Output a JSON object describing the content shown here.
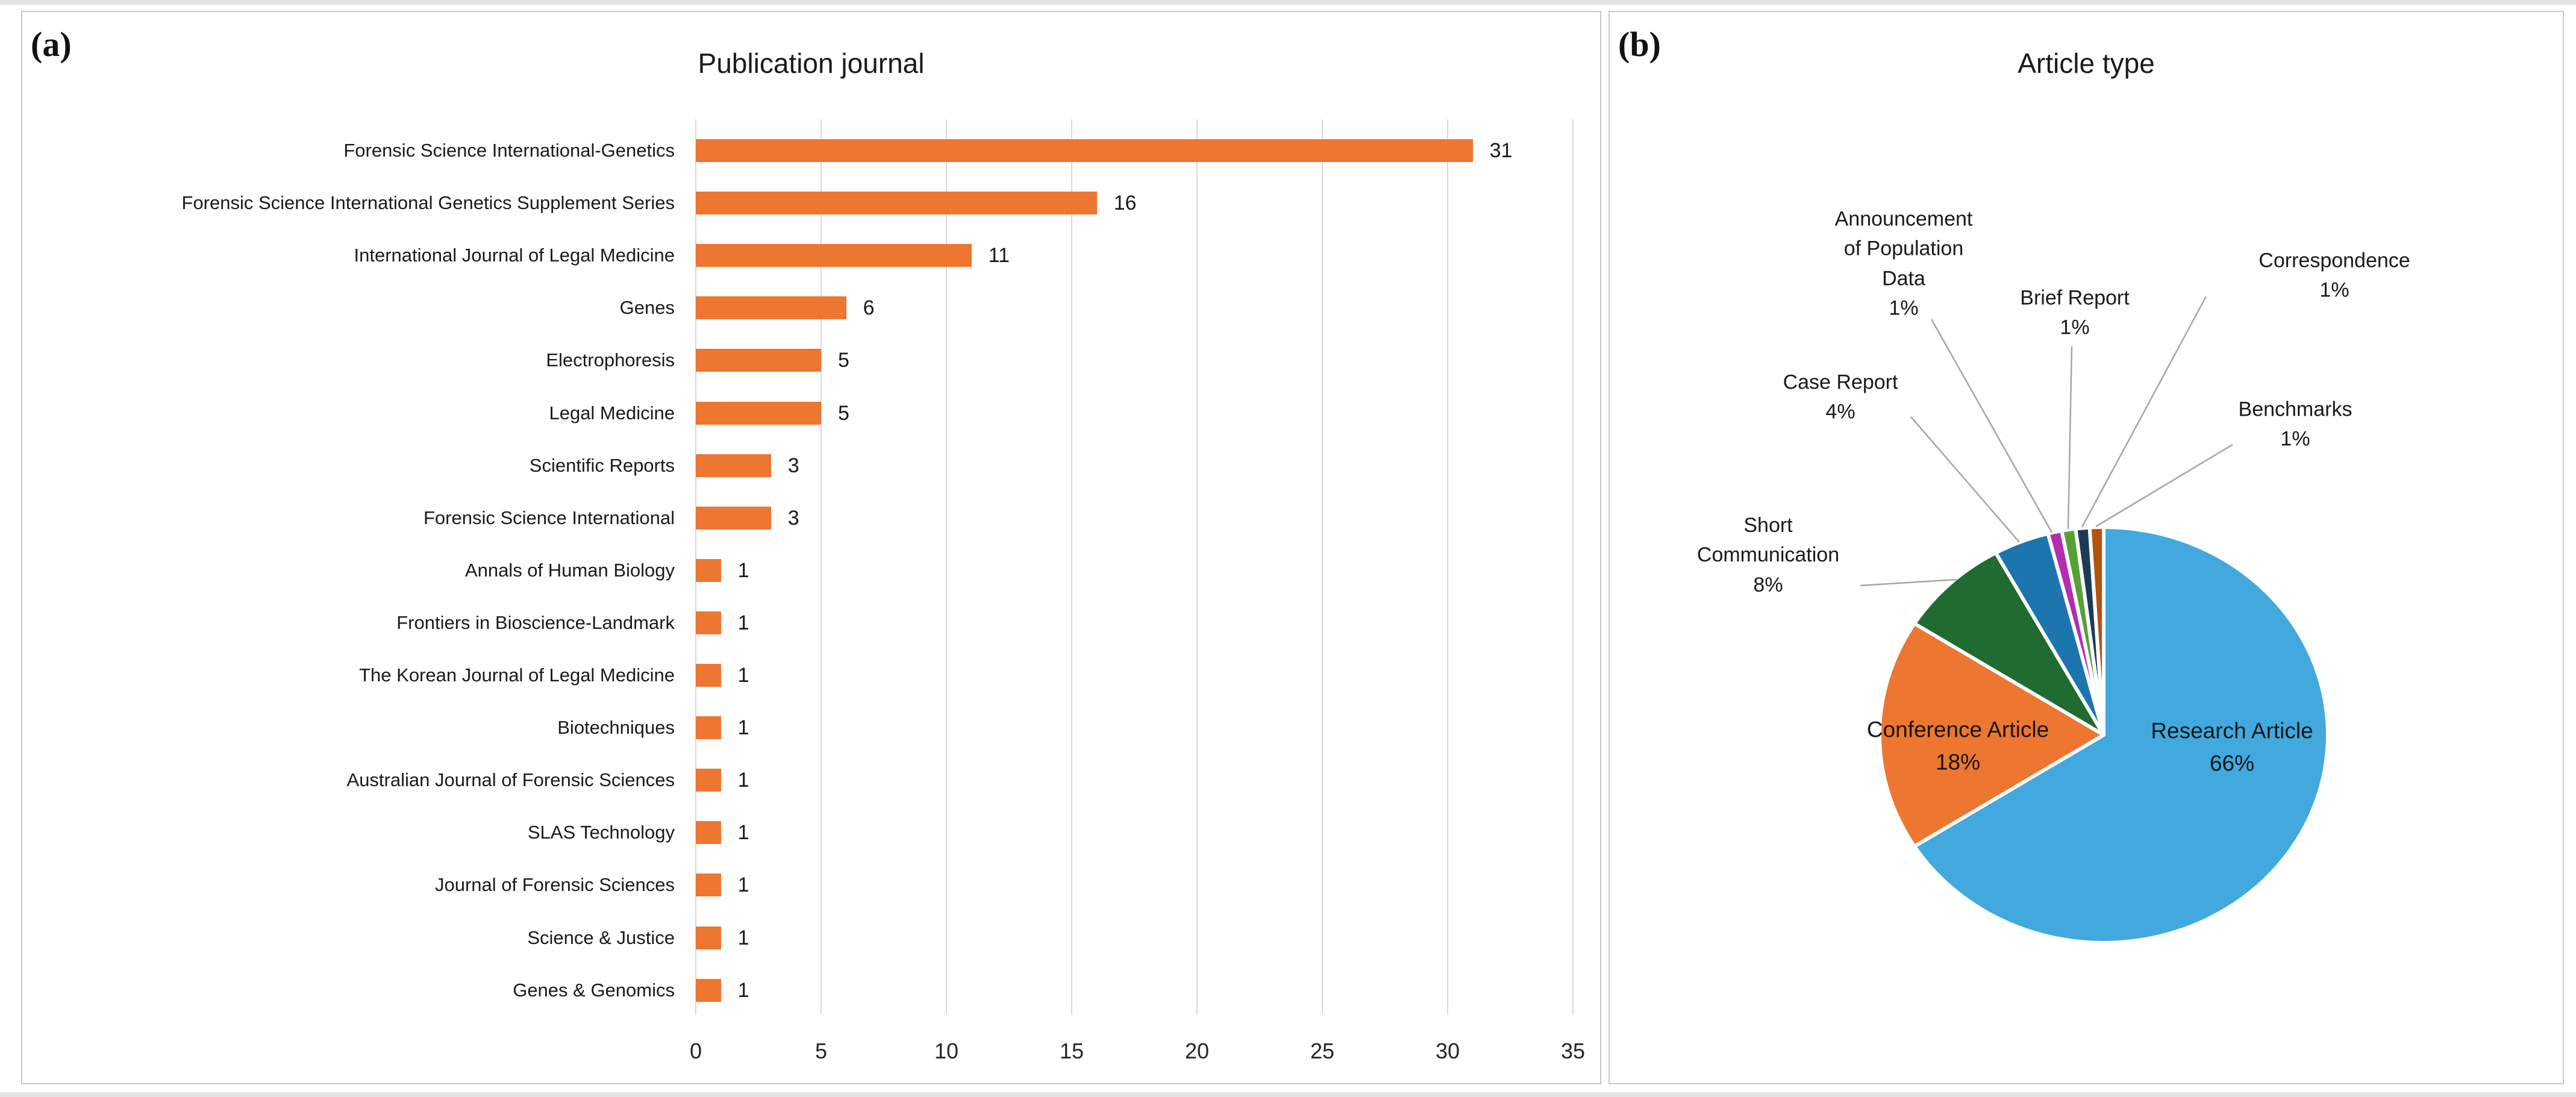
{
  "panels": {
    "a": {
      "letter": "(a)"
    },
    "b": {
      "letter": "(b)"
    }
  },
  "chart_data": [
    {
      "type": "bar",
      "title": "Publication journal",
      "orientation": "horizontal",
      "categories": [
        "Forensic Science International-Genetics",
        "Forensic Science International Genetics Supplement Series",
        "International Journal of Legal Medicine",
        "Genes",
        "Electrophoresis",
        "Legal Medicine",
        "Scientific Reports",
        "Forensic Science International",
        "Annals of Human Biology",
        "Frontiers in Bioscience-Landmark",
        "The Korean Journal of Legal Medicine",
        "Biotechniques",
        "Australian Journal of Forensic Sciences",
        "SLAS Technology",
        "Journal of Forensic Sciences",
        "Science & Justice",
        "Genes & Genomics"
      ],
      "values": [
        31,
        16,
        11,
        6,
        5,
        5,
        3,
        3,
        1,
        1,
        1,
        1,
        1,
        1,
        1,
        1,
        1
      ],
      "xlabel": "",
      "ylabel": "",
      "xlim": [
        0,
        35
      ],
      "xticks": [
        0,
        5,
        10,
        15,
        20,
        25,
        30,
        35
      ],
      "grid": true,
      "bar_color": "#ED7631",
      "gridline_color": "#D9D9D9"
    },
    {
      "type": "pie",
      "title": "Article type",
      "direction": "clockwise",
      "start_angle_deg": 0,
      "slices": [
        {
          "label": "Research Article",
          "pct": 66,
          "color": "#41A9DE",
          "label_style": "inside"
        },
        {
          "label": "Conference Article",
          "pct": 18,
          "color": "#ED7631",
          "label_style": "inside"
        },
        {
          "label": "Short Communication",
          "pct": 8,
          "color": "#206B2F",
          "label_style": "callout"
        },
        {
          "label": "Case Report",
          "pct": 4,
          "color": "#1D75AD",
          "label_style": "callout"
        },
        {
          "label": "Announcement of Population Data",
          "pct": 1,
          "color": "#B22DB3",
          "label_style": "callout"
        },
        {
          "label": "Brief Report",
          "pct": 1,
          "color": "#53A334",
          "label_style": "callout"
        },
        {
          "label": "Correspondence",
          "pct": 1,
          "color": "#1B3B58",
          "label_style": "callout"
        },
        {
          "label": "Benchmarks",
          "pct": 1,
          "color": "#B4520E",
          "label_style": "callout"
        }
      ],
      "leader_line_color": "#A6A6A6"
    }
  ]
}
